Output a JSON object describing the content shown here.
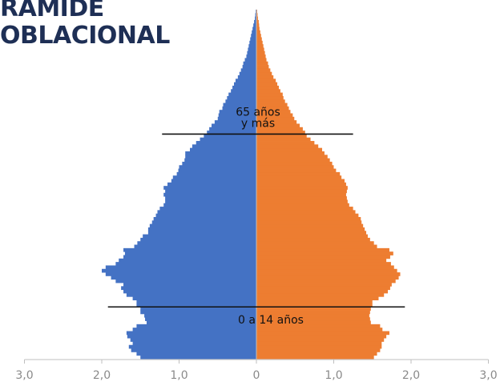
{
  "header": {
    "title_line1": "RAMIDE",
    "title_line2": "OBLACIONAL"
  },
  "colors": {
    "left": "#4472c4",
    "right": "#ed7d31",
    "axis": "#bfbfbf",
    "marker": "#111111",
    "title": "#1e2f55",
    "tick": "#8a8a8a"
  },
  "chart_data": {
    "type": "bar",
    "orientation": "horizontal",
    "layout": "population-pyramid",
    "title": "",
    "xlabel": "",
    "ylabel": "",
    "xlim": [
      -3.0,
      3.0
    ],
    "x_tick_values": [
      -3,
      -2,
      -1,
      0,
      1,
      2,
      3
    ],
    "x_tick_labels": [
      "3,0",
      "2,0",
      "1,0",
      "0",
      "1,0",
      "2,0",
      "3,0"
    ],
    "age_groups_bottom_to_top": 101,
    "series": [
      {
        "side": "left",
        "values": [
          1.5,
          1.55,
          1.62,
          1.65,
          1.6,
          1.63,
          1.67,
          1.68,
          1.6,
          1.55,
          1.42,
          1.44,
          1.45,
          1.5,
          1.5,
          1.55,
          1.55,
          1.6,
          1.68,
          1.72,
          1.75,
          1.72,
          1.82,
          1.88,
          1.95,
          2.0,
          1.95,
          1.82,
          1.78,
          1.72,
          1.7,
          1.72,
          1.58,
          1.54,
          1.5,
          1.47,
          1.4,
          1.4,
          1.38,
          1.35,
          1.33,
          1.3,
          1.28,
          1.25,
          1.2,
          1.18,
          1.18,
          1.2,
          1.18,
          1.2,
          1.15,
          1.1,
          1.08,
          1.03,
          1.01,
          1.0,
          0.96,
          0.93,
          0.92,
          0.92,
          0.86,
          0.83,
          0.78,
          0.73,
          0.68,
          0.64,
          0.61,
          0.58,
          0.54,
          0.5,
          0.49,
          0.48,
          0.44,
          0.43,
          0.4,
          0.38,
          0.36,
          0.33,
          0.31,
          0.29,
          0.27,
          0.24,
          0.22,
          0.2,
          0.18,
          0.17,
          0.15,
          0.13,
          0.12,
          0.11,
          0.1,
          0.09,
          0.08,
          0.07,
          0.06,
          0.05,
          0.04,
          0.03,
          0.02,
          0.015,
          0.01
        ]
      },
      {
        "side": "right",
        "values": [
          1.52,
          1.56,
          1.6,
          1.62,
          1.62,
          1.65,
          1.68,
          1.72,
          1.63,
          1.6,
          1.48,
          1.47,
          1.46,
          1.47,
          1.48,
          1.5,
          1.5,
          1.58,
          1.65,
          1.7,
          1.73,
          1.75,
          1.8,
          1.84,
          1.86,
          1.82,
          1.78,
          1.74,
          1.68,
          1.73,
          1.77,
          1.72,
          1.56,
          1.52,
          1.47,
          1.44,
          1.42,
          1.4,
          1.38,
          1.36,
          1.35,
          1.32,
          1.28,
          1.25,
          1.2,
          1.18,
          1.17,
          1.16,
          1.17,
          1.18,
          1.16,
          1.14,
          1.1,
          1.08,
          1.03,
          1.0,
          0.98,
          0.95,
          0.92,
          0.88,
          0.85,
          0.8,
          0.75,
          0.7,
          0.65,
          0.63,
          0.6,
          0.56,
          0.52,
          0.49,
          0.47,
          0.44,
          0.42,
          0.4,
          0.37,
          0.35,
          0.34,
          0.31,
          0.29,
          0.27,
          0.25,
          0.22,
          0.2,
          0.18,
          0.16,
          0.15,
          0.13,
          0.12,
          0.11,
          0.1,
          0.09,
          0.08,
          0.07,
          0.06,
          0.05,
          0.04,
          0.035,
          0.03,
          0.02,
          0.015,
          0.01
        ]
      }
    ],
    "markers": [
      {
        "age_index": 15,
        "xrange": [
          -1.92,
          1.92
        ],
        "label": "0 a 14 años"
      },
      {
        "age_index": 65,
        "xrange": [
          -1.22,
          1.25
        ],
        "label_lines": [
          "65 años",
          "y más"
        ]
      }
    ]
  }
}
